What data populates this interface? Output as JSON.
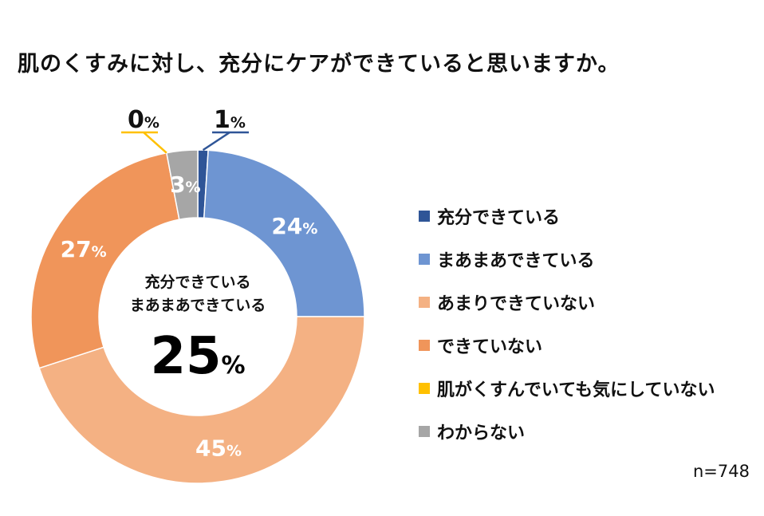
{
  "note": "n=748",
  "chart_data": {
    "type": "pie",
    "title": "肌のくすみに対し、充分にケアができていると思いますか。",
    "categories": [
      "充分できている",
      "まあまあできている",
      "あまりできていない",
      "できていない",
      "肌がくすんでいても気にしていない",
      "わからない"
    ],
    "values": [
      1,
      24,
      45,
      27,
      0,
      3
    ],
    "value_suffix": "%",
    "colors": [
      "#2f5597",
      "#6e95d2",
      "#f4b183",
      "#f0955a",
      "#ffc000",
      "#a6a6a6"
    ],
    "center_text": {
      "line1": "充分できている",
      "line2": "まあまあできている",
      "value": "25",
      "suffix": "%"
    },
    "legend_position": "right"
  }
}
